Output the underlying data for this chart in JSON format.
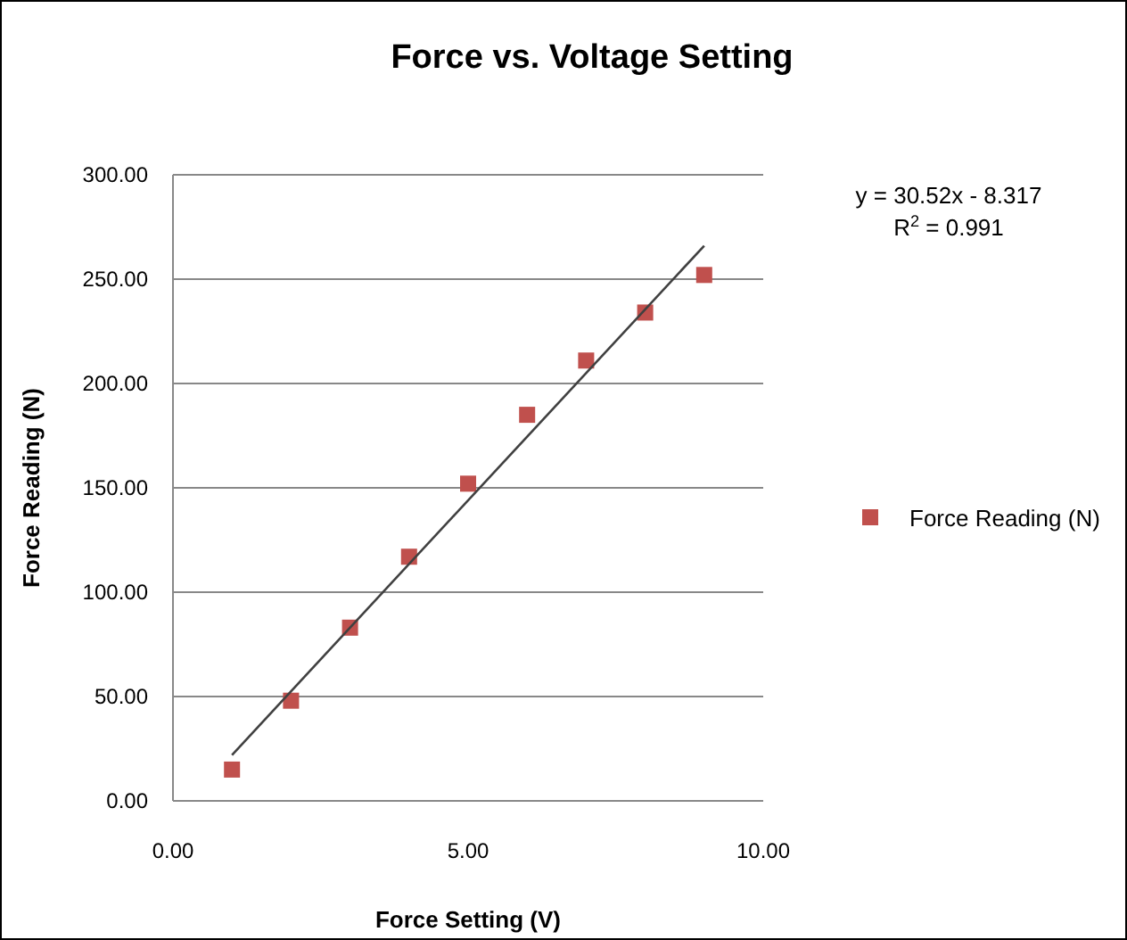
{
  "chart_data": {
    "type": "scatter",
    "title": "Force  vs. Voltage Setting",
    "xlabel": "Force Setting (V)",
    "ylabel": "Force Reading (N)",
    "x": [
      1,
      2,
      3,
      4,
      5,
      6,
      7,
      8,
      9
    ],
    "series": [
      {
        "name": "Force Reading (N)",
        "color": "#c0504d",
        "values": [
          15,
          48,
          83,
          117,
          152,
          185,
          211,
          234,
          252
        ],
        "marker": "square"
      },
      {
        "type": "line",
        "color": "#404040",
        "x": [
          1,
          9
        ],
        "values": [
          22,
          266
        ],
        "marker": "none"
      }
    ],
    "xlim": [
      0,
      10
    ],
    "xticks": [
      {
        "value": 0,
        "label": "0.00"
      },
      {
        "value": 5,
        "label": "5.00"
      },
      {
        "value": 10,
        "label": "10.00"
      }
    ],
    "ylim": [
      0,
      300
    ],
    "yticks": [
      {
        "value": 0,
        "label": "0.00"
      },
      {
        "value": 50,
        "label": "50.00"
      },
      {
        "value": 100,
        "label": "100.00"
      },
      {
        "value": 150,
        "label": "150.00"
      },
      {
        "value": 200,
        "label": "200.00"
      },
      {
        "value": 250,
        "label": "250.00"
      },
      {
        "value": 300,
        "label": "300.00"
      }
    ],
    "grid": "y",
    "legend": "right",
    "annotations": [
      "y = 30.52x - 8.317",
      "R$^{2}$ = 0.991"
    ]
  }
}
